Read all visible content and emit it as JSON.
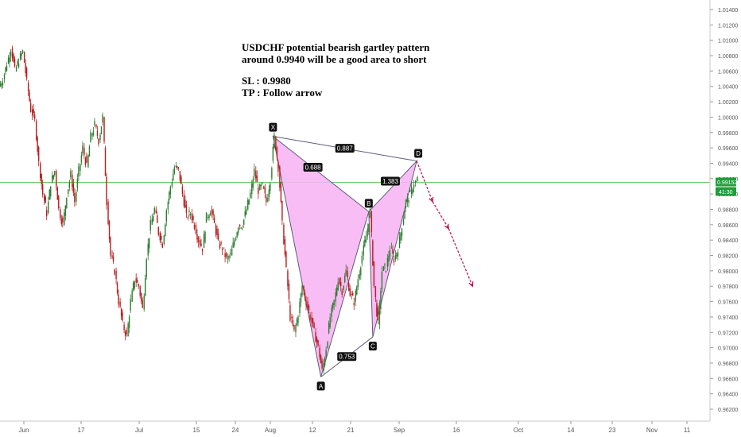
{
  "chart_data": {
    "type": "candlestick",
    "symbol": "USDCHF",
    "annotation": {
      "line1": "USDCHF potential bearish gartley pattern",
      "line2": "around 0.9940 will be a good area to short",
      "sl": "SL : 0.9980",
      "tp": "TP : Follow arrow"
    },
    "ylim": [
      0.9615,
      1.015
    ],
    "y_ticks": [
      "1.01400",
      "1.01200",
      "1.01000",
      "1.00800",
      "1.00600",
      "1.00400",
      "1.00200",
      "1.00000",
      "0.99800",
      "0.99600",
      "0.99400",
      "0.99200",
      "0.99000",
      "0.98800",
      "0.98600",
      "0.98400",
      "0.98200",
      "0.98000",
      "0.97800",
      "0.97600",
      "0.97400",
      "0.97200",
      "0.97000",
      "0.96800",
      "0.96600",
      "0.96400",
      "0.96200"
    ],
    "x_ticks": [
      "Jun",
      "17",
      "Jul",
      "15",
      "24",
      "Aug",
      "12",
      "21",
      "Sep",
      "16",
      "Oct",
      "14",
      "23",
      "Nov",
      "11"
    ],
    "current_price": {
      "value": 0.99152,
      "label": "0.99152",
      "countdown": "41:30"
    },
    "pattern": {
      "type": "bearish gartley",
      "points": [
        {
          "label": "X",
          "date_index": 68,
          "price": 0.9975
        },
        {
          "label": "A",
          "date_index": 80,
          "price": 0.9662
        },
        {
          "label": "B",
          "date_index": 92,
          "price": 0.9877
        },
        {
          "label": "C",
          "date_index": 93,
          "price": 0.9714
        },
        {
          "label": "D",
          "date_index": 104,
          "price": 0.9943
        }
      ],
      "ratios": [
        {
          "label": "0.887",
          "between": "X-D"
        },
        {
          "label": "0.688",
          "between": "X-B"
        },
        {
          "label": "0.753",
          "between": "A-C"
        },
        {
          "label": "1.383",
          "between": "B-D"
        }
      ],
      "fill_color": "#f7b6f3",
      "line_color": "#5d5d7a"
    },
    "projection": {
      "color": "#c2185b",
      "points": [
        {
          "date_index": 104,
          "price": 0.9943
        },
        {
          "date_index": 108,
          "price": 0.989
        },
        {
          "date_index": 112,
          "price": 0.9855
        },
        {
          "date_index": 118,
          "price": 0.978
        }
      ]
    },
    "colors": {
      "up": "#2e7d32",
      "down": "#b71c1c",
      "price_line": "#66cc66",
      "price_tag": "#1e9e3a"
    },
    "candles_close": [
      1.005,
      1.007,
      1.009,
      1.006,
      1.0075,
      1.0085,
      1.0045,
      1.001,
      0.9995,
      0.994,
      0.99,
      0.9875,
      0.9915,
      0.993,
      0.988,
      0.986,
      0.99,
      0.9925,
      0.989,
      0.993,
      0.996,
      0.9935,
      0.9975,
      0.999,
      0.997,
      1.0,
      0.989,
      0.982,
      0.98,
      0.976,
      0.973,
      0.9715,
      0.976,
      0.979,
      0.978,
      0.975,
      0.982,
      0.986,
      0.988,
      0.985,
      0.9835,
      0.988,
      0.991,
      0.9935,
      0.993,
      0.99,
      0.987,
      0.9875,
      0.986,
      0.984,
      0.983,
      0.987,
      0.988,
      0.986,
      0.9835,
      0.983,
      0.9815,
      0.982,
      0.984,
      0.986,
      0.986,
      0.988,
      0.99,
      0.993,
      0.9905,
      0.991,
      0.989,
      0.992,
      0.9975,
      0.9935,
      0.986,
      0.98,
      0.974,
      0.972,
      0.9745,
      0.978,
      0.976,
      0.974,
      0.972,
      0.97,
      0.967,
      0.97,
      0.974,
      0.976,
      0.979,
      0.9775,
      0.98,
      0.977,
      0.976,
      0.979,
      0.982,
      0.9845,
      0.9877,
      0.978,
      0.973,
      0.98,
      0.9805,
      0.983,
      0.9815,
      0.983,
      0.986,
      0.989,
      0.99,
      0.9915,
      0.9915
    ]
  }
}
